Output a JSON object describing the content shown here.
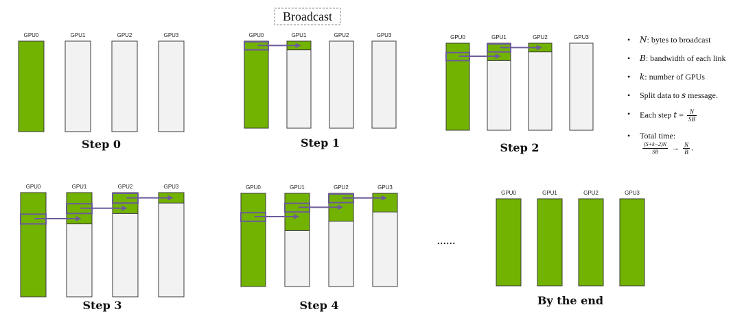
{
  "title": "Broadcast",
  "gpu_names": [
    "GPU0",
    "GPU1",
    "GPU2",
    "GPU3"
  ],
  "colors": {
    "full": "#72b200",
    "empty": "#f2f2f2",
    "border": "#3a3a3a",
    "arrow": "#6c5b9b",
    "title_border": "#888888"
  },
  "steps": [
    {
      "label": "Step 0",
      "fill_fraction": [
        1,
        0,
        0,
        0
      ],
      "arrows": 0
    },
    {
      "label": "Step 1",
      "fill_fraction": [
        1,
        0.1,
        0,
        0
      ],
      "arrows": 1
    },
    {
      "label": "Step 2",
      "fill_fraction": [
        1,
        0.2,
        0.1,
        0
      ],
      "arrows": 2
    },
    {
      "label": "Step 3",
      "fill_fraction": [
        1,
        0.3,
        0.2,
        0.1
      ],
      "arrows": 3
    },
    {
      "label": "Step 4",
      "fill_fraction": [
        1,
        0.4,
        0.3,
        0.2
      ],
      "arrows": 3
    },
    {
      "label": "By the end",
      "fill_fraction": [
        1,
        1,
        1,
        1
      ],
      "arrows": 0
    }
  ],
  "ellipsis": "......",
  "notes": {
    "n_var": "N",
    "n_text": ": bytes to broadcast",
    "b_var": "B",
    "b_text": ": bandwidth of each link",
    "k_var": "k",
    "k_text": ": number of GPUs",
    "s_prefix": "Split data to ",
    "s_var": "s",
    "s_suffix": " message.",
    "step_prefix": "Each step ",
    "step_var": "t",
    "step_eq": " = ",
    "step_num": "N",
    "step_den": "SB",
    "total_label": "Total time:",
    "total_num": "(S+k−2)N",
    "total_den": "SB",
    "total_arrow": "→",
    "result_num": "N",
    "result_den": "B",
    "result_end": "."
  }
}
